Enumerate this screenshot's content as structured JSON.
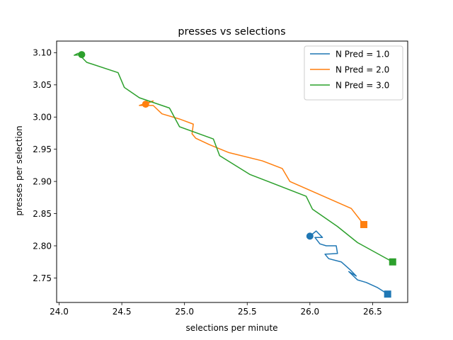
{
  "chart_data": {
    "type": "line",
    "title": "presses vs selections",
    "xlabel": "selections per minute",
    "ylabel": "presses per selection",
    "xlim": [
      23.98,
      26.78
    ],
    "ylim": [
      2.712,
      3.118
    ],
    "xticks": [
      24.0,
      24.5,
      25.0,
      25.5,
      26.0,
      26.5
    ],
    "xtick_labels": [
      "24.0",
      "24.5",
      "25.0",
      "25.5",
      "26.0",
      "26.5"
    ],
    "yticks": [
      2.75,
      2.8,
      2.85,
      2.9,
      2.95,
      3.0,
      3.05,
      3.1
    ],
    "ytick_labels": [
      "2.75",
      "2.80",
      "2.85",
      "2.90",
      "2.95",
      "3.00",
      "3.05",
      "3.10"
    ],
    "grid": false,
    "legend_position": "top-right",
    "start_marker": "circle",
    "end_marker": "square",
    "series": [
      {
        "name": "N Pred = 1.0",
        "color": "#1f77b4",
        "x": [
          26.0,
          26.05,
          26.1,
          26.04,
          26.08,
          26.13,
          26.21,
          26.22,
          26.12,
          26.15,
          26.25,
          26.32,
          26.37,
          26.31,
          26.38,
          26.45,
          26.54,
          26.62
        ],
        "y": [
          2.815,
          2.823,
          2.813,
          2.813,
          2.803,
          2.8,
          2.8,
          2.788,
          2.787,
          2.78,
          2.775,
          2.763,
          2.753,
          2.76,
          2.747,
          2.743,
          2.735,
          2.725
        ]
      },
      {
        "name": "N Pred = 2.0",
        "color": "#ff7f0e",
        "x": [
          24.69,
          24.75,
          24.64,
          24.75,
          24.82,
          24.96,
          25.07,
          25.06,
          25.09,
          25.2,
          25.35,
          25.62,
          25.78,
          25.84,
          26.33,
          26.43
        ],
        "y": [
          3.02,
          3.025,
          3.018,
          3.018,
          3.005,
          2.997,
          2.989,
          2.974,
          2.967,
          2.957,
          2.945,
          2.932,
          2.92,
          2.9,
          2.858,
          2.833
        ]
      },
      {
        "name": "N Pred = 3.0",
        "color": "#2ca02c",
        "x": [
          24.18,
          24.12,
          24.15,
          24.22,
          24.47,
          24.52,
          24.64,
          24.88,
          24.96,
          25.23,
          25.28,
          25.52,
          25.97,
          26.02,
          26.22,
          26.38,
          26.66
        ],
        "y": [
          3.097,
          3.096,
          3.099,
          3.085,
          3.069,
          3.046,
          3.03,
          3.014,
          2.985,
          2.966,
          2.94,
          2.911,
          2.877,
          2.857,
          2.83,
          2.805,
          2.775
        ]
      }
    ]
  }
}
